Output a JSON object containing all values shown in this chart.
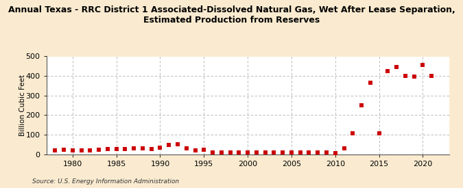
{
  "title": "Annual Texas - RRC District 1 Associated-Dissolved Natural Gas, Wet After Lease Separation,\nEstimated Production from Reserves",
  "ylabel": "Billion Cubic Feet",
  "source": "Source: U.S. Energy Information Administration",
  "background_color": "#faebd0",
  "plot_background": "#ffffff",
  "marker_color": "#cc0000",
  "marker_size": 4,
  "years": [
    1978,
    1979,
    1980,
    1981,
    1982,
    1983,
    1984,
    1985,
    1986,
    1987,
    1988,
    1989,
    1990,
    1991,
    1992,
    1993,
    1994,
    1995,
    1996,
    1997,
    1998,
    1999,
    2000,
    2001,
    2002,
    2003,
    2004,
    2005,
    2006,
    2007,
    2008,
    2009,
    2010,
    2011,
    2012,
    2013,
    2014,
    2015,
    2016,
    2017,
    2018,
    2019,
    2020,
    2021
  ],
  "values": [
    20,
    22,
    20,
    20,
    18,
    22,
    25,
    27,
    25,
    28,
    28,
    25,
    32,
    47,
    50,
    30,
    20,
    22,
    8,
    10,
    8,
    8,
    8,
    7,
    7,
    8,
    8,
    8,
    7,
    7,
    7,
    7,
    5,
    30,
    108,
    250,
    365,
    108,
    425,
    445,
    400,
    397,
    455,
    400
  ],
  "xlim": [
    1977,
    2023
  ],
  "ylim": [
    0,
    500
  ],
  "yticks": [
    0,
    100,
    200,
    300,
    400,
    500
  ],
  "xticks": [
    1980,
    1985,
    1990,
    1995,
    2000,
    2005,
    2010,
    2015,
    2020
  ],
  "title_fontsize": 9,
  "axis_fontsize": 7.5,
  "tick_fontsize": 8,
  "source_fontsize": 6.5
}
